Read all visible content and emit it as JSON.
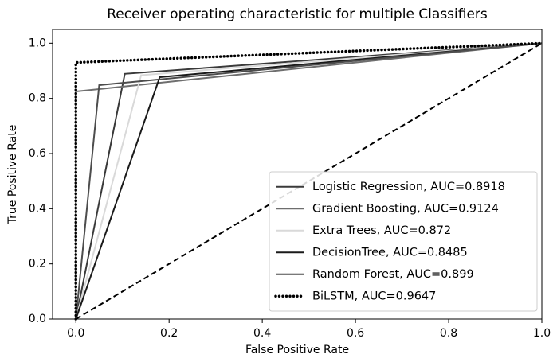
{
  "chart_data": {
    "type": "line",
    "title": "Receiver operating characteristic for multiple Classifiers",
    "xlabel": "False Positive Rate",
    "ylabel": "True Positive Rate",
    "xlim": [
      -0.05,
      1.0
    ],
    "ylim": [
      0,
      1.05
    ],
    "xticks": [
      {
        "value": 0,
        "label": "0.0"
      },
      {
        "value": 0.2,
        "label": "0.2"
      },
      {
        "value": 0.4,
        "label": "0.4"
      },
      {
        "value": 0.6,
        "label": "0.6"
      },
      {
        "value": 0.8,
        "label": "0.8"
      },
      {
        "value": 1.0,
        "label": "1.0"
      }
    ],
    "yticks": [
      {
        "value": 0,
        "label": "0.0"
      },
      {
        "value": 0.2,
        "label": "0.2"
      },
      {
        "value": 0.4,
        "label": "0.4"
      },
      {
        "value": 0.6,
        "label": "0.6"
      },
      {
        "value": 0.8,
        "label": "0.8"
      },
      {
        "value": 1.0,
        "label": "1.0"
      }
    ],
    "legend": "lower right",
    "series": [
      {
        "name": "Logistic Regression, AUC=0.8918",
        "color": "#3a3a3a",
        "x": [
          0,
          0.105,
          1
        ],
        "values": [
          0,
          0.889,
          1
        ]
      },
      {
        "name": "Gradient Boosting, AUC=0.9124",
        "color": "#6e6e6e",
        "x": [
          0,
          0,
          1
        ],
        "values": [
          0,
          0.825,
          1
        ]
      },
      {
        "name": "Extra Trees, AUC=0.872",
        "color": "#d9d9d9",
        "x": [
          0,
          0.14,
          1
        ],
        "values": [
          0,
          0.884,
          1
        ]
      },
      {
        "name": "DecisionTree, AUC=0.8485",
        "color": "#1a1a1a",
        "x": [
          0,
          0.18,
          1
        ],
        "values": [
          0,
          0.877,
          1
        ]
      },
      {
        "name": "Random Forest, AUC=0.899",
        "color": "#4d4d4d",
        "x": [
          0,
          0.05,
          1
        ],
        "values": [
          0,
          0.848,
          1
        ]
      },
      {
        "name": "BiLSTM, AUC=0.9647",
        "color": "#000000",
        "style": "dotted",
        "x": [
          0,
          0,
          1
        ],
        "values": [
          0,
          0.93,
          1
        ]
      }
    ],
    "reference_line": {
      "color": "#000000",
      "style": "dashed",
      "x": [
        0,
        1
      ],
      "values": [
        0,
        1
      ]
    }
  }
}
